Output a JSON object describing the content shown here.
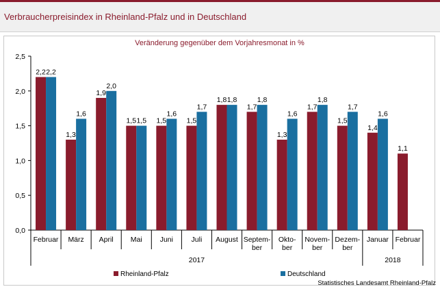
{
  "header": {
    "title": "Verbraucherpreisindex in Rheinland-Pfalz und in Deutschland"
  },
  "chart_data": {
    "type": "bar",
    "title": "Verbraucherpreisindex in Rheinland-Pfalz und in Deutschland",
    "subtitle": "Veränderung gegenüber dem Vorjahresmonat in %",
    "categories": [
      [
        "Februar"
      ],
      [
        "März"
      ],
      [
        "April"
      ],
      [
        "Mai"
      ],
      [
        "Juni"
      ],
      [
        "Juli"
      ],
      [
        "August"
      ],
      [
        "Septem-",
        "ber"
      ],
      [
        "Okto-",
        "ber"
      ],
      [
        "Novem-",
        "ber"
      ],
      [
        "Dezem-",
        "ber"
      ],
      [
        "Januar"
      ],
      [
        "Februar"
      ]
    ],
    "year_groups": [
      {
        "label": "2017",
        "start": 0,
        "end": 10
      },
      {
        "label": "2018",
        "start": 11,
        "end": 12
      }
    ],
    "series": [
      {
        "name": "Rheinland-Pfalz",
        "color": "#8a1c2d",
        "values": [
          2.2,
          1.3,
          1.9,
          1.5,
          1.5,
          1.5,
          1.8,
          1.7,
          1.3,
          1.7,
          1.5,
          1.4,
          1.1
        ],
        "labels": [
          "2,2",
          "1,3",
          "1,9",
          "1,5",
          "1,5",
          "1,5",
          "1,8",
          "1,7",
          "1,3",
          "1,7",
          "1,5",
          "1,4",
          "1,1"
        ]
      },
      {
        "name": "Deutschland",
        "color": "#1a6fa0",
        "values": [
          2.2,
          1.6,
          2.0,
          1.5,
          1.6,
          1.7,
          1.8,
          1.8,
          1.6,
          1.8,
          1.7,
          1.6,
          null
        ],
        "labels": [
          "2,2",
          "1,6",
          "2,0",
          "1,5",
          "1,6",
          "1,7",
          "1,8",
          "1,8",
          "1,6",
          "1,8",
          "1,7",
          "1,6",
          ""
        ]
      }
    ],
    "ylim": [
      0,
      2.5
    ],
    "yticks": [
      0,
      0.5,
      1.0,
      1.5,
      2.0,
      2.5
    ],
    "ytick_labels": [
      "0,0",
      "0,5",
      "1,0",
      "1,5",
      "2,0",
      "2,5"
    ],
    "grid": false,
    "legend_position": "bottom-left",
    "source": "Statistisches Landesamt Rheinland-Pfalz"
  }
}
